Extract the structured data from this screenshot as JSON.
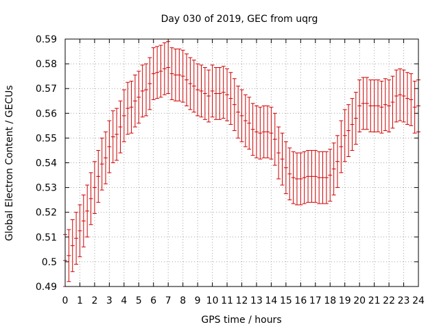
{
  "chart_data": {
    "type": "line",
    "title": "Day 030 of 2019, GEC from uqrg",
    "xlabel": "GPS time / hours",
    "ylabel": "Global Electron Content / GECUs",
    "xlim": [
      0,
      24
    ],
    "ylim": [
      0.49,
      0.59
    ],
    "xticks": [
      0,
      1,
      2,
      3,
      4,
      5,
      6,
      7,
      8,
      9,
      10,
      11,
      12,
      13,
      14,
      15,
      16,
      17,
      18,
      19,
      20,
      21,
      22,
      23,
      24
    ],
    "xtick_labels": [
      "0",
      "1",
      "2",
      "3",
      "4",
      "5",
      "6",
      "7",
      "8",
      "9",
      "10",
      "11",
      "12",
      "13",
      "14",
      "15",
      "16",
      "17",
      "18",
      "19",
      "20",
      "21",
      "22",
      "23",
      "24"
    ],
    "yticks": [
      0.49,
      0.5,
      0.51,
      0.52,
      0.53,
      0.54,
      0.55,
      0.56,
      0.57,
      0.58,
      0.59
    ],
    "ytick_labels": [
      "0.49",
      "0.5",
      "0.51",
      "0.52",
      "0.53",
      "0.54",
      "0.55",
      "0.56",
      "0.57",
      "0.58",
      "0.59"
    ],
    "grid": true,
    "series": [
      {
        "name": "GEC",
        "color": "#cc0000",
        "error": 0.0105,
        "x": [
          0.0,
          0.25,
          0.5,
          0.75,
          1.0,
          1.25,
          1.5,
          1.75,
          2.0,
          2.25,
          2.5,
          2.75,
          3.0,
          3.25,
          3.5,
          3.75,
          4.0,
          4.25,
          4.5,
          4.75,
          5.0,
          5.25,
          5.5,
          5.75,
          6.0,
          6.25,
          6.5,
          6.75,
          7.0,
          7.25,
          7.5,
          7.75,
          8.0,
          8.25,
          8.5,
          8.75,
          9.0,
          9.25,
          9.5,
          9.75,
          10.0,
          10.25,
          10.5,
          10.75,
          11.0,
          11.25,
          11.5,
          11.75,
          12.0,
          12.25,
          12.5,
          12.75,
          13.0,
          13.25,
          13.5,
          13.75,
          14.0,
          14.25,
          14.5,
          14.75,
          15.0,
          15.25,
          15.5,
          15.75,
          16.0,
          16.25,
          16.5,
          16.75,
          17.0,
          17.25,
          17.5,
          17.75,
          18.0,
          18.25,
          18.5,
          18.75,
          19.0,
          19.25,
          19.5,
          19.75,
          20.0,
          20.25,
          20.5,
          20.75,
          21.0,
          21.25,
          21.5,
          21.75,
          22.0,
          22.25,
          22.5,
          22.75,
          23.0,
          23.25,
          23.5,
          23.75,
          24.0
        ],
        "y": [
          0.5005,
          0.5025,
          0.5065,
          0.5095,
          0.5125,
          0.5165,
          0.5205,
          0.5255,
          0.53,
          0.5345,
          0.5395,
          0.542,
          0.5465,
          0.5505,
          0.5515,
          0.5545,
          0.559,
          0.562,
          0.5625,
          0.565,
          0.5665,
          0.569,
          0.5695,
          0.572,
          0.576,
          0.5765,
          0.577,
          0.578,
          0.5785,
          0.576,
          0.5755,
          0.5755,
          0.575,
          0.5735,
          0.572,
          0.571,
          0.5695,
          0.569,
          0.568,
          0.567,
          0.569,
          0.568,
          0.568,
          0.5685,
          0.5675,
          0.566,
          0.5635,
          0.5605,
          0.559,
          0.557,
          0.556,
          0.5535,
          0.5525,
          0.552,
          0.5525,
          0.5525,
          0.552,
          0.5495,
          0.544,
          0.5415,
          0.538,
          0.5355,
          0.534,
          0.5335,
          0.5335,
          0.534,
          0.5345,
          0.5345,
          0.5345,
          0.534,
          0.534,
          0.534,
          0.535,
          0.5375,
          0.5405,
          0.5465,
          0.551,
          0.553,
          0.5555,
          0.558,
          0.563,
          0.564,
          0.564,
          0.563,
          0.563,
          0.563,
          0.5625,
          0.5635,
          0.563,
          0.5645,
          0.567,
          0.5675,
          0.567,
          0.566,
          0.5655,
          0.5625,
          0.563
        ]
      }
    ]
  }
}
